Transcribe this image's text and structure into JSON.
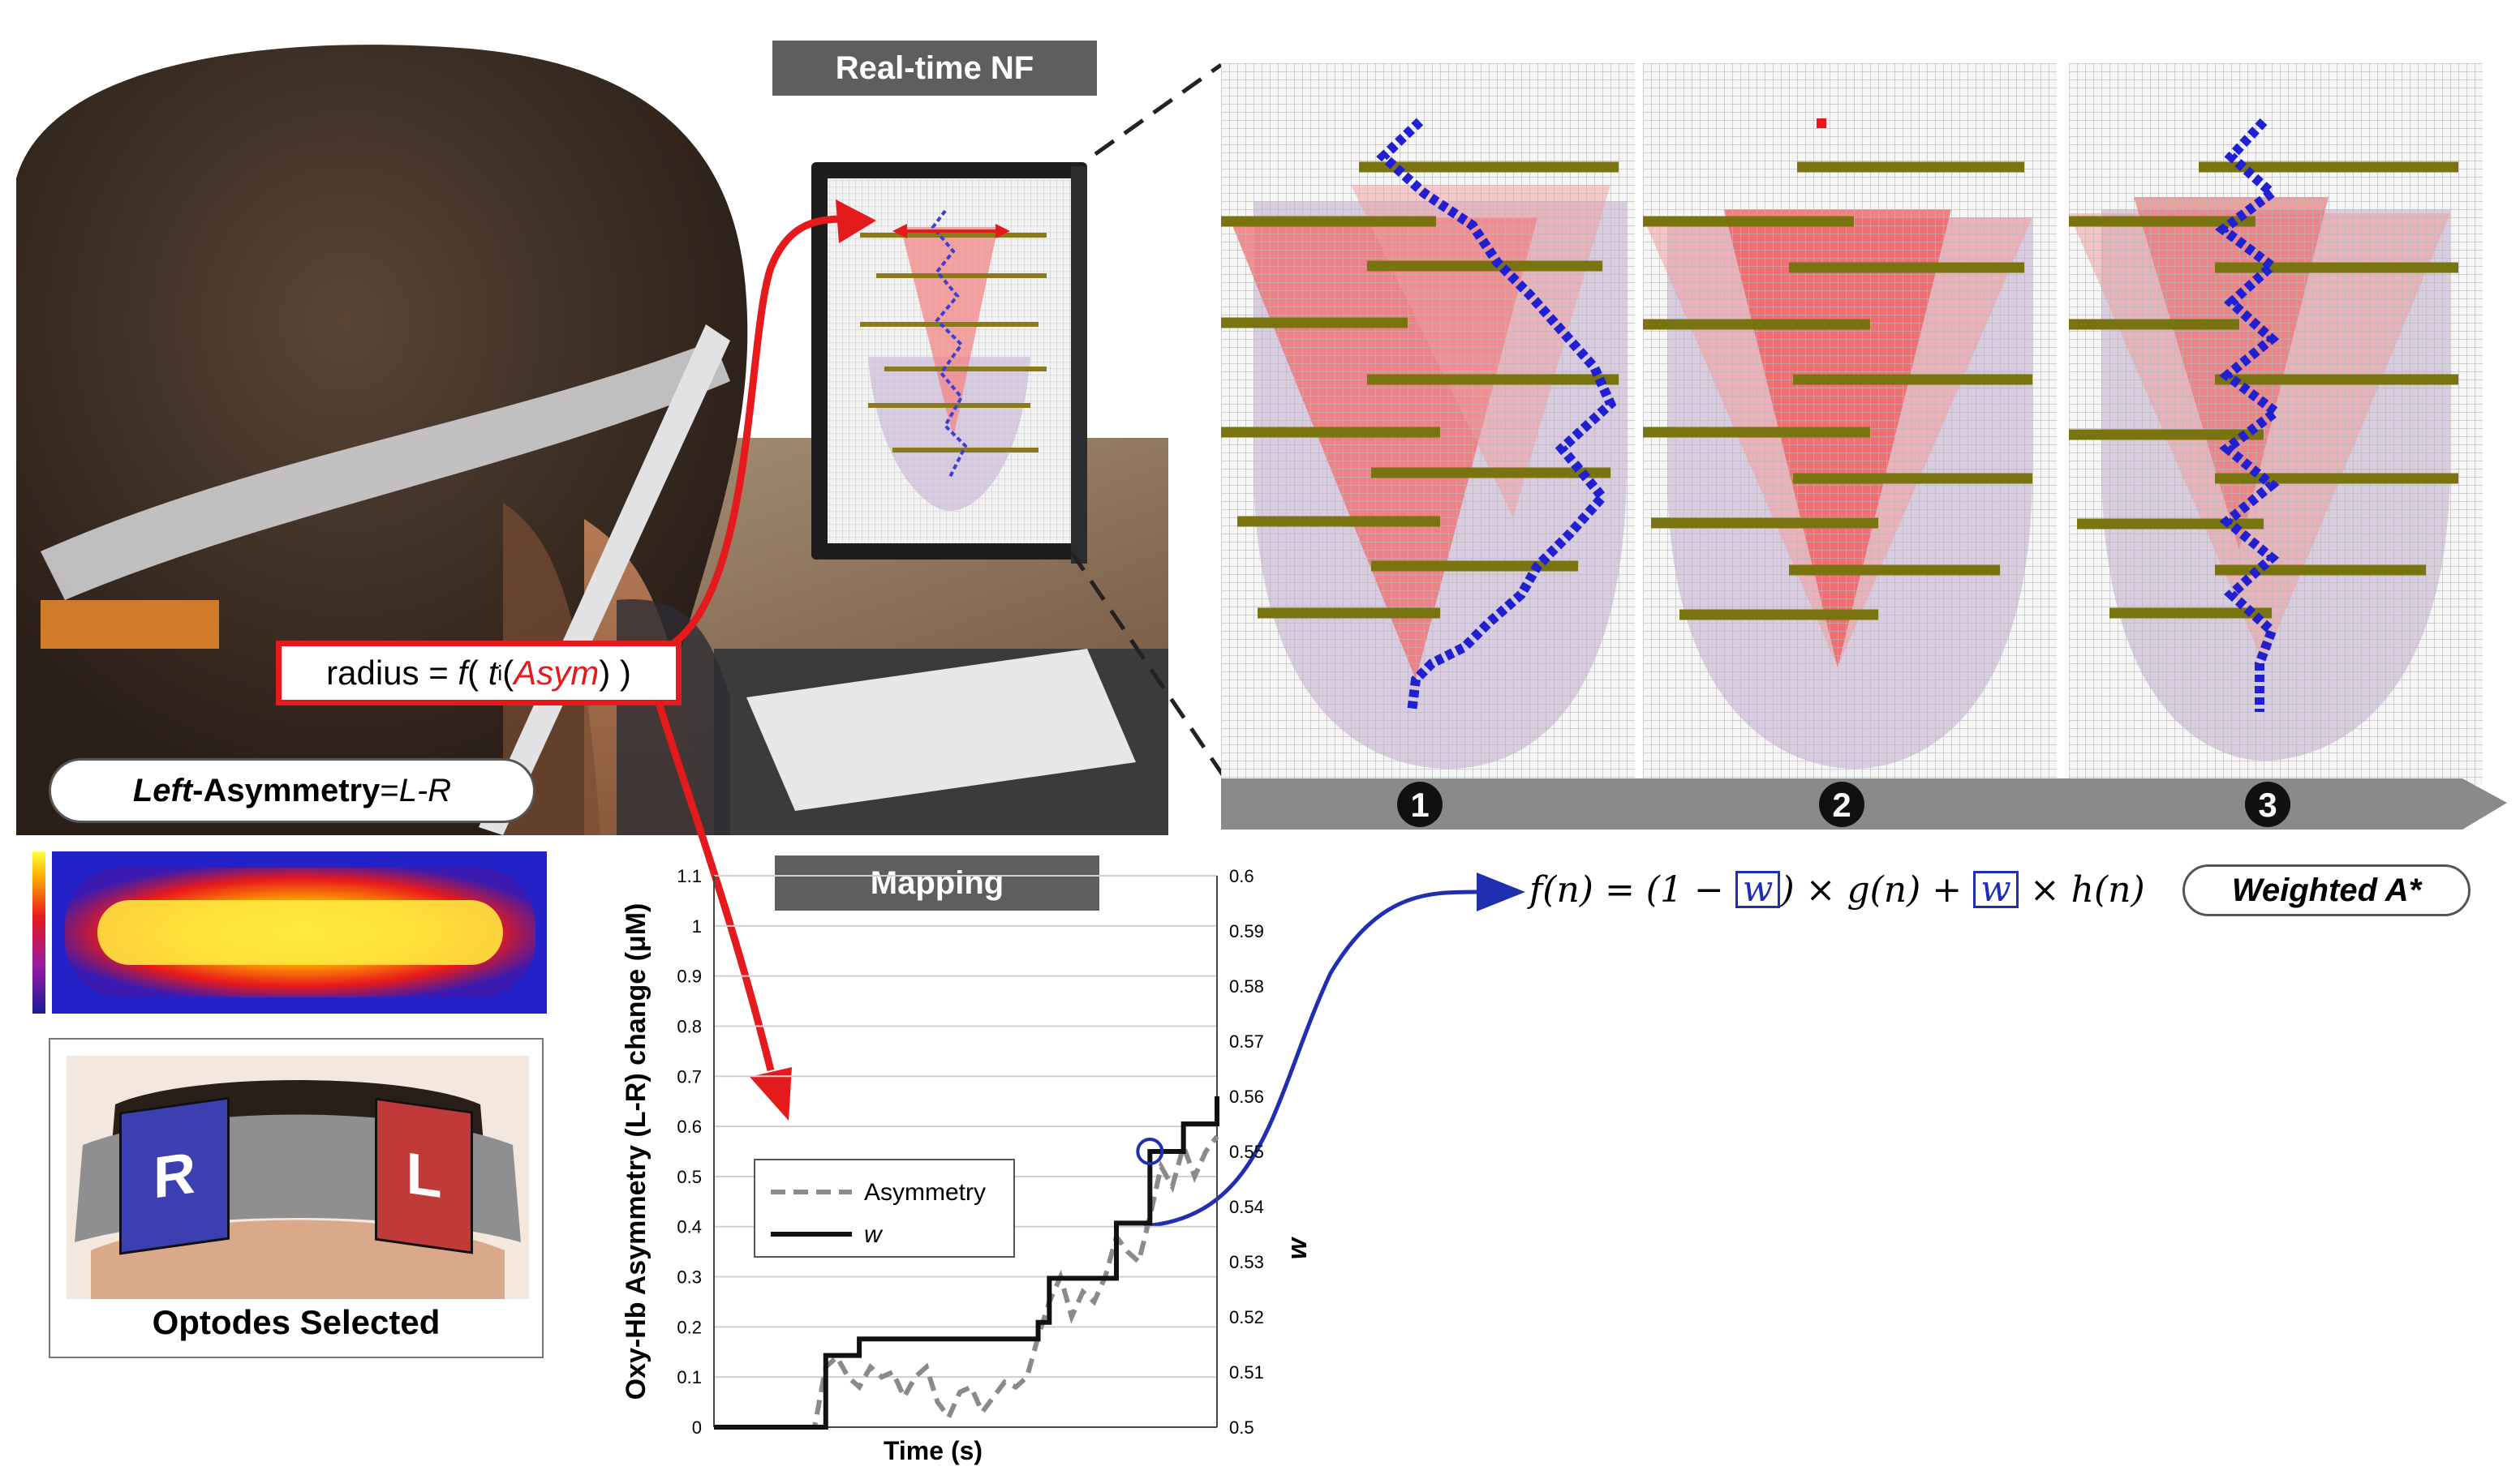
{
  "header": {
    "realtime_label": "Real-time NF",
    "mapping_label": "Mapping"
  },
  "left_panel": {
    "radius_formula_prefix": "radius = ",
    "radius_formula_f": "f",
    "radius_formula_open": "( ",
    "radius_formula_t": "t",
    "radius_formula_sub": "i",
    "radius_formula_asym": "Asym",
    "radius_formula_close": ") )",
    "asymmetry_left": "Left",
    "asymmetry_rest": "-Asymmetry",
    "asymmetry_eq": "=",
    "asymmetry_lr": "L-R",
    "optode_r": "R",
    "optode_l": "L",
    "optodes_caption": "Optodes Selected"
  },
  "path_panels": {
    "steps": [
      "1",
      "2",
      "3"
    ]
  },
  "formula": {
    "lhs": "f(n) = (1 − ",
    "w1": "w",
    "mid": ") × g(n) + ",
    "w2": "w",
    "rhs": " × h(n)",
    "weighted_label": "Weighted A*"
  },
  "colors": {
    "accent_red": "#e41a1c",
    "link_blue": "#1f2fb0",
    "label_gray": "#5e5e5e",
    "optode_r": "#3b3fb0",
    "optode_l": "#c03a3a"
  },
  "chart_data": {
    "type": "line",
    "xlabel": "Time (s)",
    "ylabel_left": "Oxy-Hb Asymmetry (L-R) change (μM)",
    "ylabel_right": "w",
    "ylim_left": [
      0,
      1.1
    ],
    "ylim_right": [
      0.5,
      0.6
    ],
    "yticks_left": [
      "0",
      "0.1",
      "0.2",
      "0.3",
      "0.4",
      "0.5",
      "0.6",
      "0.7",
      "0.8",
      "0.9",
      "1",
      "1.1"
    ],
    "yticks_right": [
      "0.5",
      "0.51",
      "0.52",
      "0.53",
      "0.54",
      "0.55",
      "0.56",
      "0.57",
      "0.58",
      "0.59",
      "0.6"
    ],
    "legend_position": "center-left",
    "grid": true,
    "series": [
      {
        "name": "Asymmetry",
        "style": "dashed",
        "axis": "left",
        "values": [
          0,
          0,
          0,
          0,
          0,
          0,
          0,
          0,
          0,
          0,
          0.12,
          0.14,
          0.1,
          0.08,
          0.12,
          0.1,
          0.11,
          0.06,
          0.1,
          0.12,
          0.05,
          0.02,
          0.07,
          0.08,
          0.03,
          0.06,
          0.09,
          0.08,
          0.1,
          0.18,
          0.25,
          0.3,
          0.22,
          0.27,
          0.25,
          0.3,
          0.38,
          0.35,
          0.33,
          0.42,
          0.52,
          0.48,
          0.56,
          0.5,
          0.55,
          0.58
        ]
      },
      {
        "name": "w",
        "style": "solid",
        "axis": "right",
        "values": [
          0.5,
          0.5,
          0.5,
          0.5,
          0.5,
          0.5,
          0.5,
          0.5,
          0.5,
          0.5,
          0.513,
          0.513,
          0.513,
          0.516,
          0.516,
          0.516,
          0.516,
          0.516,
          0.516,
          0.516,
          0.516,
          0.516,
          0.516,
          0.516,
          0.516,
          0.516,
          0.516,
          0.516,
          0.516,
          0.519,
          0.527,
          0.527,
          0.527,
          0.527,
          0.527,
          0.527,
          0.537,
          0.537,
          0.537,
          0.55,
          0.55,
          0.55,
          0.555,
          0.555,
          0.555,
          0.56
        ]
      }
    ]
  }
}
